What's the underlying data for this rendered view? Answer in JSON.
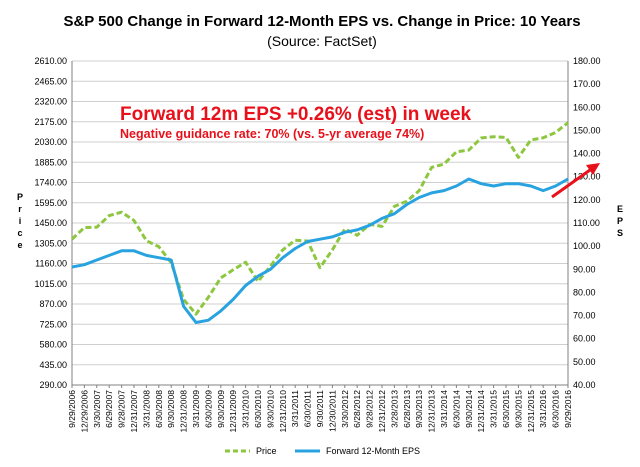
{
  "chart_data": {
    "type": "line",
    "title": "S&P 500 Change in Forward 12-Month EPS vs. Change in Price: 10 Years",
    "subtitle": "(Source: FactSet)",
    "ylabel_left": "Price",
    "ylabel_right": "EPS",
    "ylim_left": [
      290,
      2610
    ],
    "ylim_right": [
      40,
      180
    ],
    "yticks_left": [
      "2610.00",
      "2465.00",
      "2320.00",
      "2175.00",
      "2030.00",
      "1885.00",
      "1740.00",
      "1595.00",
      "1450.00",
      "1305.00",
      "1160.00",
      "1015.00",
      "870.00",
      "725.00",
      "580.00",
      "435.00",
      "290.00"
    ],
    "yticks_right": [
      "180.00",
      "170.00",
      "160.00",
      "150.00",
      "140.00",
      "130.00",
      "120.00",
      "110.00",
      "100.00",
      "90.00",
      "80.00",
      "70.00",
      "60.00",
      "50.00",
      "40.00"
    ],
    "x_tick_labels": [
      "9/29/2006",
      "12/29/2006",
      "3/30/2007",
      "6/29/2007",
      "9/28/2007",
      "12/31/2007",
      "3/31/2008",
      "6/30/2008",
      "9/30/2008",
      "12/31/2008",
      "3/31/2009",
      "6/30/2009",
      "9/30/2009",
      "12/31/2009",
      "3/31/2010",
      "6/30/2010",
      "9/30/2010",
      "12/31/2010",
      "3/31/2011",
      "6/30/2011",
      "9/30/2011",
      "12/30/2011",
      "3/30/2012",
      "6/28/2012",
      "9/28/2012",
      "12/31/2012",
      "3/28/2013",
      "6/28/2013",
      "9/30/2013",
      "12/31/2013",
      "3/31/2014",
      "6/30/2014",
      "9/30/2014",
      "12/31/2014",
      "3/31/2015",
      "6/30/2015",
      "9/30/2015",
      "12/31/2015",
      "3/31/2016",
      "6/30/2016",
      "9/29/2016"
    ],
    "series": [
      {
        "name": "Price",
        "axis": "left",
        "color": "#8dc63f",
        "style": "dashed",
        "values": [
          1335,
          1418,
          1420,
          1503,
          1527,
          1468,
          1323,
          1280,
          1166,
          903,
          798,
          919,
          1057,
          1115,
          1169,
          1031,
          1141,
          1258,
          1326,
          1321,
          1131,
          1258,
          1408,
          1362,
          1441,
          1426,
          1569,
          1606,
          1682,
          1848,
          1872,
          1960,
          1972,
          2059,
          2068,
          2063,
          1920,
          2044,
          2060,
          2099,
          2168
        ]
      },
      {
        "name": "Forward 12-Month EPS",
        "axis": "right",
        "color": "#29a3e0",
        "style": "solid",
        "values": [
          91,
          92,
          94,
          96,
          98,
          98,
          96,
          95,
          94,
          74,
          67,
          68,
          72,
          77,
          83,
          87,
          90,
          95,
          99,
          102,
          103,
          104,
          106,
          107,
          109,
          112,
          114,
          118,
          121,
          123,
          124,
          126,
          129,
          127,
          126,
          127,
          127,
          126,
          124,
          126,
          129
        ]
      }
    ],
    "annotations": {
      "headline": "Forward 12m EPS +0.26% (est) in week",
      "subline": "Negative guidance rate: 70% (vs. 5-yr average 74%)",
      "color": "#e8101a"
    },
    "legend_position": "bottom",
    "grid": true
  }
}
